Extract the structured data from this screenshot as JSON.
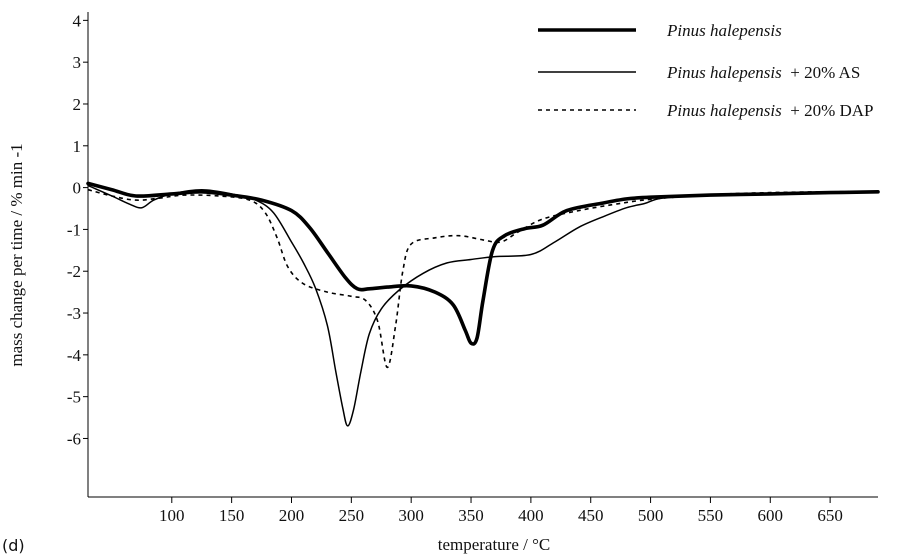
{
  "panel_label": "(d)",
  "chart_data": {
    "type": "line",
    "title": "",
    "xlabel": "temperature / °C",
    "ylabel": "mass change per time / % min -1",
    "xlim": [
      30,
      690
    ],
    "ylim": [
      -7.4,
      4.2
    ],
    "xticks": [
      100,
      150,
      200,
      250,
      300,
      350,
      400,
      450,
      500,
      550,
      600,
      650
    ],
    "yticks": [
      4,
      3,
      2,
      1,
      0,
      -1,
      -2,
      -3,
      -4,
      -5,
      -6
    ],
    "grid": false,
    "legend_position": "top-right",
    "series": [
      {
        "name_italic": "Pinus halepensis",
        "name_suffix": "",
        "style": "thick",
        "color": "#000000",
        "points": [
          [
            30,
            0.1
          ],
          [
            50,
            -0.05
          ],
          [
            70,
            -0.2
          ],
          [
            100,
            -0.15
          ],
          [
            125,
            -0.1
          ],
          [
            150,
            -0.18
          ],
          [
            175,
            -0.3
          ],
          [
            200,
            -0.55
          ],
          [
            215,
            -0.95
          ],
          [
            230,
            -1.55
          ],
          [
            245,
            -2.15
          ],
          [
            255,
            -2.42
          ],
          [
            265,
            -2.42
          ],
          [
            280,
            -2.38
          ],
          [
            300,
            -2.35
          ],
          [
            320,
            -2.5
          ],
          [
            335,
            -2.8
          ],
          [
            345,
            -3.4
          ],
          [
            350,
            -3.72
          ],
          [
            355,
            -3.6
          ],
          [
            360,
            -2.7
          ],
          [
            368,
            -1.5
          ],
          [
            378,
            -1.15
          ],
          [
            395,
            -0.98
          ],
          [
            410,
            -0.9
          ],
          [
            430,
            -0.55
          ],
          [
            460,
            -0.37
          ],
          [
            480,
            -0.27
          ],
          [
            500,
            -0.23
          ],
          [
            550,
            -0.18
          ],
          [
            600,
            -0.15
          ],
          [
            650,
            -0.12
          ],
          [
            690,
            -0.1
          ]
        ]
      },
      {
        "name_italic": "Pinus halepensis",
        "name_suffix": "+ 20% AS",
        "style": "solid",
        "color": "#000000",
        "points": [
          [
            30,
            0.05
          ],
          [
            50,
            -0.2
          ],
          [
            65,
            -0.4
          ],
          [
            75,
            -0.48
          ],
          [
            85,
            -0.3
          ],
          [
            100,
            -0.15
          ],
          [
            125,
            -0.05
          ],
          [
            150,
            -0.15
          ],
          [
            170,
            -0.3
          ],
          [
            185,
            -0.6
          ],
          [
            200,
            -1.3
          ],
          [
            210,
            -1.8
          ],
          [
            220,
            -2.4
          ],
          [
            230,
            -3.3
          ],
          [
            237,
            -4.4
          ],
          [
            243,
            -5.3
          ],
          [
            247,
            -5.7
          ],
          [
            252,
            -5.3
          ],
          [
            258,
            -4.4
          ],
          [
            265,
            -3.5
          ],
          [
            275,
            -2.9
          ],
          [
            290,
            -2.45
          ],
          [
            310,
            -2.05
          ],
          [
            330,
            -1.8
          ],
          [
            350,
            -1.72
          ],
          [
            370,
            -1.65
          ],
          [
            400,
            -1.6
          ],
          [
            420,
            -1.3
          ],
          [
            440,
            -0.95
          ],
          [
            460,
            -0.7
          ],
          [
            480,
            -0.48
          ],
          [
            495,
            -0.38
          ],
          [
            510,
            -0.25
          ],
          [
            550,
            -0.18
          ],
          [
            600,
            -0.16
          ],
          [
            650,
            -0.13
          ],
          [
            690,
            -0.12
          ]
        ]
      },
      {
        "name_italic": "Pinus halepensis",
        "name_suffix": "+ 20% DAP",
        "style": "dashed",
        "color": "#000000",
        "points": [
          [
            30,
            -0.05
          ],
          [
            50,
            -0.2
          ],
          [
            70,
            -0.3
          ],
          [
            90,
            -0.25
          ],
          [
            110,
            -0.18
          ],
          [
            140,
            -0.2
          ],
          [
            165,
            -0.3
          ],
          [
            178,
            -0.6
          ],
          [
            188,
            -1.2
          ],
          [
            197,
            -1.9
          ],
          [
            210,
            -2.3
          ],
          [
            230,
            -2.5
          ],
          [
            250,
            -2.6
          ],
          [
            262,
            -2.7
          ],
          [
            272,
            -3.2
          ],
          [
            280,
            -4.3
          ],
          [
            287,
            -3.3
          ],
          [
            293,
            -2.0
          ],
          [
            300,
            -1.35
          ],
          [
            320,
            -1.2
          ],
          [
            340,
            -1.15
          ],
          [
            360,
            -1.25
          ],
          [
            375,
            -1.3
          ],
          [
            390,
            -1.05
          ],
          [
            410,
            -0.75
          ],
          [
            440,
            -0.55
          ],
          [
            470,
            -0.4
          ],
          [
            500,
            -0.28
          ],
          [
            550,
            -0.17
          ],
          [
            600,
            -0.12
          ],
          [
            650,
            -0.1
          ],
          [
            690,
            -0.1
          ]
        ]
      }
    ]
  }
}
